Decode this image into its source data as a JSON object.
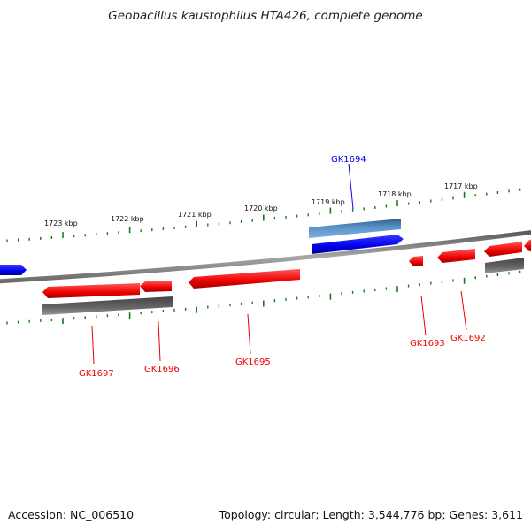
{
  "title": "Geobacillus kaustophilus HTA426, complete genome",
  "footer": {
    "accession": "Accession: NC_006510",
    "summary": "Topology: circular; Length: 3,544,776 bp; Genes: 3,611"
  },
  "colors": {
    "forward_gene": "#0000ee",
    "reverse_gene": "#ee0000",
    "highlight_gene": "#4a7fb0",
    "shadow_gene": "#555555",
    "backbone": "#808080",
    "tick": "#1a7a1a"
  },
  "scale_ticks": [
    "1723 kbp",
    "1722 kbp",
    "1721 kbp",
    "1720 kbp",
    "1719 kbp",
    "1718 kbp",
    "1717 kbp"
  ],
  "genes": [
    {
      "label": "GK1694",
      "color": "#0000ee"
    },
    {
      "label": "GK1697",
      "color": "#ee0000"
    },
    {
      "label": "GK1696",
      "color": "#ee0000"
    },
    {
      "label": "GK1695",
      "color": "#ee0000"
    },
    {
      "label": "GK1693",
      "color": "#ee0000"
    },
    {
      "label": "GK1692",
      "color": "#ee0000"
    }
  ]
}
